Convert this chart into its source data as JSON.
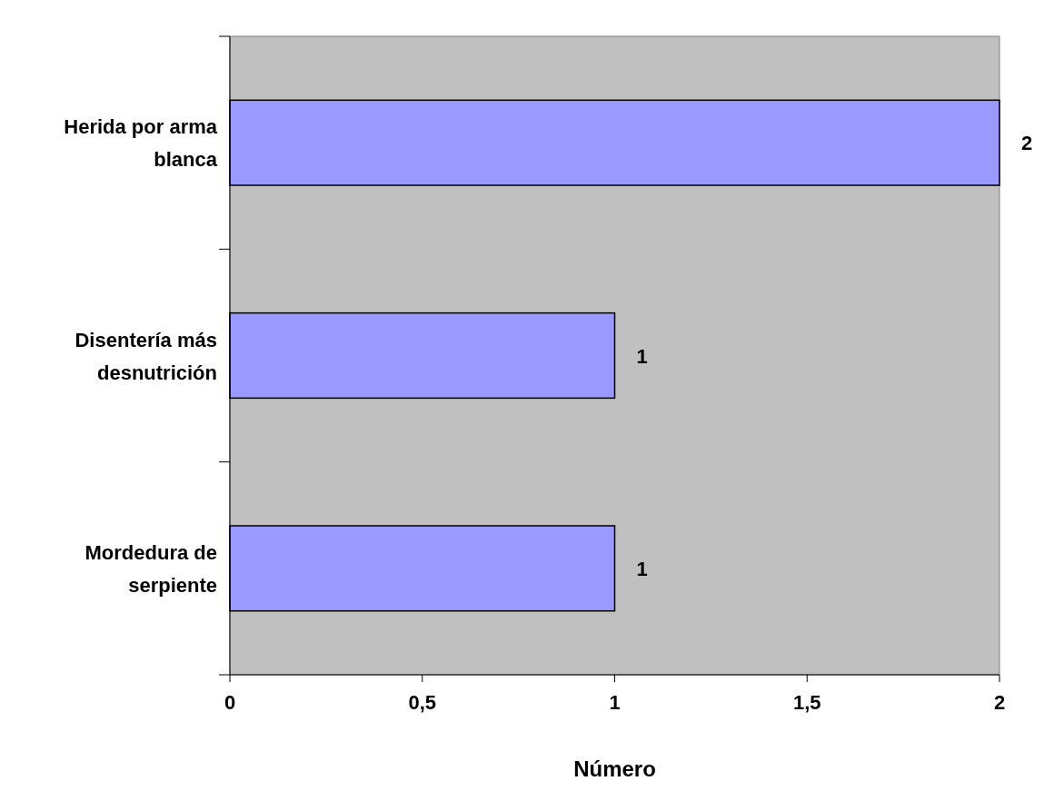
{
  "chart_data": {
    "type": "bar",
    "orientation": "horizontal",
    "xlabel": "Número",
    "categories": [
      "Herida por arma blanca",
      "Disentería más desnutrición",
      "Mordedura de serpiente"
    ],
    "values": [
      2,
      1,
      1
    ],
    "color": "#9999ff",
    "data_labels": true,
    "xlim": [
      0,
      2
    ],
    "xticks": [
      0,
      {
        "value": 0.5,
        "label": "0,5"
      },
      1,
      {
        "value": 1.5,
        "label": "1,5"
      },
      2
    ]
  }
}
